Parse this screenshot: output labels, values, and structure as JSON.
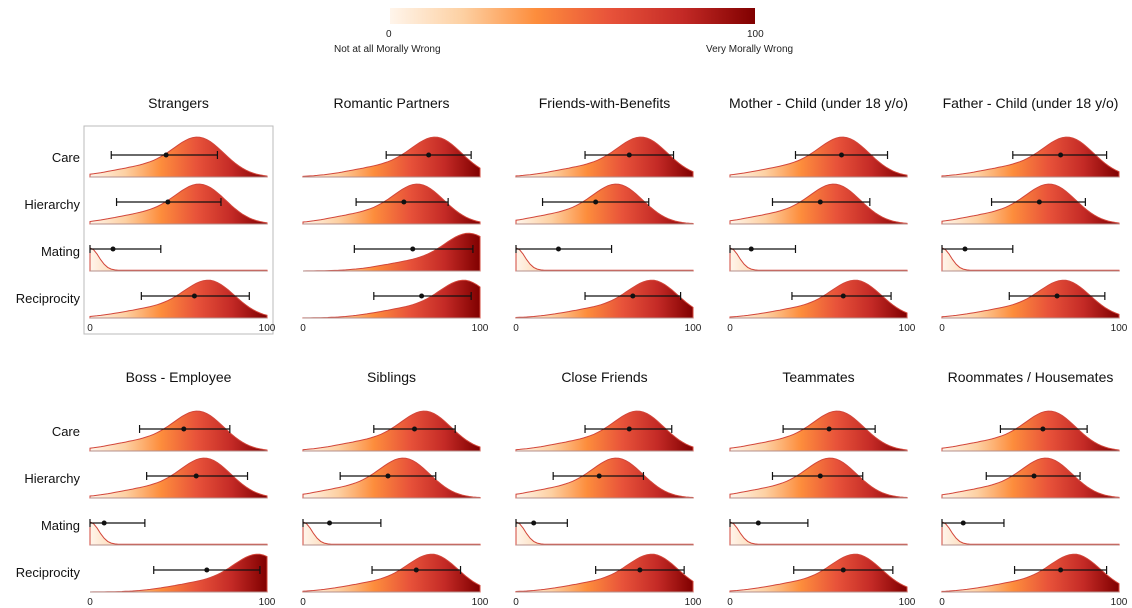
{
  "colorbar": {
    "min_label": "0",
    "max_label": "100",
    "min_text": "Not at all Morally Wrong",
    "max_text": "Very Morally Wrong",
    "colors": [
      "#fff5eb",
      "#fdd0a2",
      "#fd8d3c",
      "#e8533a",
      "#c42a26",
      "#800000"
    ]
  },
  "chart_data": {
    "type": "ridgeline",
    "xlim": [
      0,
      100
    ],
    "xticks": [
      "0",
      "100"
    ],
    "rows": [
      "Care",
      "Hierarchy",
      "Mating",
      "Reciprocity"
    ],
    "highlight_panel": "Strangers",
    "panels": [
      {
        "title": "Strangers",
        "series": [
          {
            "row": "Care",
            "mean": 43,
            "lo": 12,
            "hi": 72,
            "peak": 62,
            "height": 0.95
          },
          {
            "row": "Hierarchy",
            "mean": 44,
            "lo": 15,
            "hi": 74,
            "peak": 63,
            "height": 0.95
          },
          {
            "row": "Mating",
            "mean": 13,
            "lo": 0,
            "hi": 40,
            "peak": 0,
            "height": 0.55
          },
          {
            "row": "Reciprocity",
            "mean": 59,
            "lo": 29,
            "hi": 90,
            "peak": 68,
            "height": 0.9
          }
        ]
      },
      {
        "title": "Romantic Partners",
        "series": [
          {
            "row": "Care",
            "mean": 71,
            "lo": 47,
            "hi": 95,
            "peak": 76,
            "height": 0.95
          },
          {
            "row": "Hierarchy",
            "mean": 57,
            "lo": 30,
            "hi": 82,
            "peak": 66,
            "height": 0.95
          },
          {
            "row": "Mating",
            "mean": 62,
            "lo": 29,
            "hi": 96,
            "peak": 95,
            "height": 0.9
          },
          {
            "row": "Reciprocity",
            "mean": 67,
            "lo": 40,
            "hi": 95,
            "peak": 92,
            "height": 0.9
          }
        ]
      },
      {
        "title": "Friends-with-Benefits",
        "series": [
          {
            "row": "Care",
            "mean": 64,
            "lo": 39,
            "hi": 89,
            "peak": 72,
            "height": 0.95
          },
          {
            "row": "Hierarchy",
            "mean": 45,
            "lo": 15,
            "hi": 75,
            "peak": 58,
            "height": 0.95
          },
          {
            "row": "Mating",
            "mean": 24,
            "lo": 0,
            "hi": 54,
            "peak": 0,
            "height": 0.55
          },
          {
            "row": "Reciprocity",
            "mean": 66,
            "lo": 39,
            "hi": 93,
            "peak": 78,
            "height": 0.9
          }
        ]
      },
      {
        "title": "Mother - Child (under 18 y/o)",
        "series": [
          {
            "row": "Care",
            "mean": 63,
            "lo": 37,
            "hi": 89,
            "peak": 65,
            "height": 0.95
          },
          {
            "row": "Hierarchy",
            "mean": 51,
            "lo": 24,
            "hi": 79,
            "peak": 60,
            "height": 0.95
          },
          {
            "row": "Mating",
            "mean": 12,
            "lo": 0,
            "hi": 37,
            "peak": 0,
            "height": 0.55
          },
          {
            "row": "Reciprocity",
            "mean": 64,
            "lo": 35,
            "hi": 91,
            "peak": 72,
            "height": 0.9
          }
        ]
      },
      {
        "title": "Father - Child (under 18 y/o)",
        "series": [
          {
            "row": "Care",
            "mean": 67,
            "lo": 40,
            "hi": 93,
            "peak": 72,
            "height": 0.95
          },
          {
            "row": "Hierarchy",
            "mean": 55,
            "lo": 28,
            "hi": 81,
            "peak": 62,
            "height": 0.95
          },
          {
            "row": "Mating",
            "mean": 13,
            "lo": 0,
            "hi": 40,
            "peak": 0,
            "height": 0.55
          },
          {
            "row": "Reciprocity",
            "mean": 65,
            "lo": 38,
            "hi": 92,
            "peak": 70,
            "height": 0.9
          }
        ]
      },
      {
        "title": "Boss - Employee",
        "series": [
          {
            "row": "Care",
            "mean": 53,
            "lo": 28,
            "hi": 79,
            "peak": 62,
            "height": 0.95
          },
          {
            "row": "Hierarchy",
            "mean": 60,
            "lo": 32,
            "hi": 89,
            "peak": 66,
            "height": 0.95
          },
          {
            "row": "Mating",
            "mean": 8,
            "lo": 0,
            "hi": 31,
            "peak": 0,
            "height": 0.55
          },
          {
            "row": "Reciprocity",
            "mean": 66,
            "lo": 36,
            "hi": 96,
            "peak": 96,
            "height": 0.9
          }
        ]
      },
      {
        "title": "Siblings",
        "series": [
          {
            "row": "Care",
            "mean": 63,
            "lo": 40,
            "hi": 86,
            "peak": 70,
            "height": 0.95
          },
          {
            "row": "Hierarchy",
            "mean": 48,
            "lo": 21,
            "hi": 75,
            "peak": 58,
            "height": 0.95
          },
          {
            "row": "Mating",
            "mean": 15,
            "lo": 0,
            "hi": 44,
            "peak": 0,
            "height": 0.55
          },
          {
            "row": "Reciprocity",
            "mean": 64,
            "lo": 39,
            "hi": 89,
            "peak": 74,
            "height": 0.9
          }
        ]
      },
      {
        "title": "Close Friends",
        "series": [
          {
            "row": "Care",
            "mean": 64,
            "lo": 39,
            "hi": 88,
            "peak": 70,
            "height": 0.95
          },
          {
            "row": "Hierarchy",
            "mean": 47,
            "lo": 21,
            "hi": 72,
            "peak": 58,
            "height": 0.95
          },
          {
            "row": "Mating",
            "mean": 10,
            "lo": 0,
            "hi": 29,
            "peak": 0,
            "height": 0.55
          },
          {
            "row": "Reciprocity",
            "mean": 70,
            "lo": 45,
            "hi": 95,
            "peak": 78,
            "height": 0.9
          }
        ]
      },
      {
        "title": "Teammates",
        "series": [
          {
            "row": "Care",
            "mean": 56,
            "lo": 30,
            "hi": 82,
            "peak": 62,
            "height": 0.95
          },
          {
            "row": "Hierarchy",
            "mean": 51,
            "lo": 24,
            "hi": 75,
            "peak": 58,
            "height": 0.95
          },
          {
            "row": "Mating",
            "mean": 16,
            "lo": 0,
            "hi": 44,
            "peak": 0,
            "height": 0.55
          },
          {
            "row": "Reciprocity",
            "mean": 64,
            "lo": 36,
            "hi": 92,
            "peak": 72,
            "height": 0.9
          }
        ]
      },
      {
        "title": "Roommates / Housemates",
        "series": [
          {
            "row": "Care",
            "mean": 57,
            "lo": 33,
            "hi": 82,
            "peak": 62,
            "height": 0.95
          },
          {
            "row": "Hierarchy",
            "mean": 52,
            "lo": 25,
            "hi": 78,
            "peak": 60,
            "height": 0.95
          },
          {
            "row": "Mating",
            "mean": 12,
            "lo": 0,
            "hi": 35,
            "peak": 0,
            "height": 0.55
          },
          {
            "row": "Reciprocity",
            "mean": 67,
            "lo": 41,
            "hi": 93,
            "peak": 76,
            "height": 0.9
          }
        ]
      }
    ]
  }
}
